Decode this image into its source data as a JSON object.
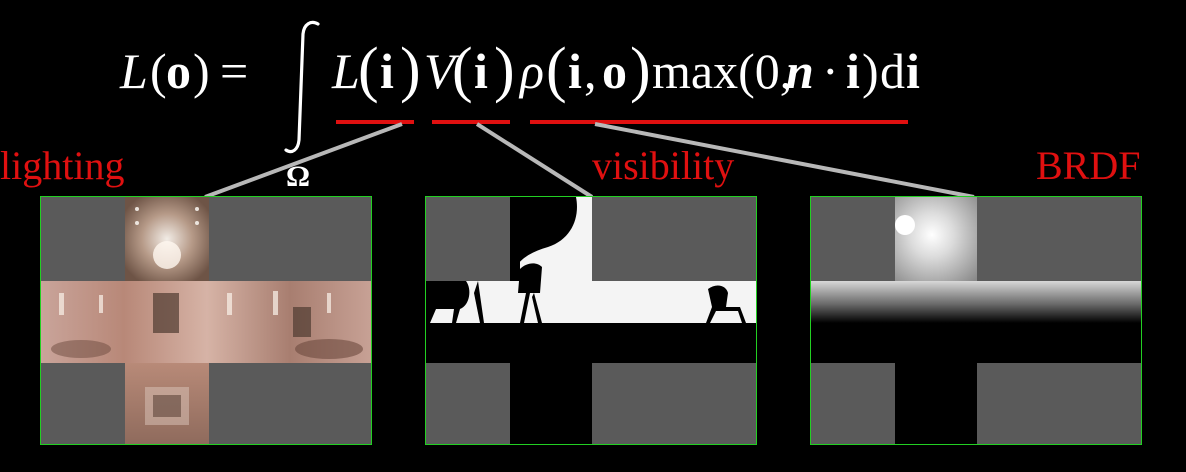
{
  "equation": {
    "lhs": "L",
    "lhs_arg": "o",
    "equals": "=",
    "domain": "Ω",
    "term_lighting_fn": "L",
    "term_lighting_arg": "i",
    "term_visibility_fn": "V",
    "term_visibility_arg": "i",
    "term_brdf_fn": "ρ",
    "term_brdf_arg_i": "i",
    "term_brdf_arg_sep": ",",
    "term_brdf_arg_o": "o",
    "cosine_term": "max(0,",
    "cosine_n": "n",
    "cosine_dot": "·",
    "cosine_i": "i",
    "cosine_close": ")",
    "differential_d": "d",
    "differential_i": "i"
  },
  "labels": {
    "lighting": "lighting",
    "visibility": "visibility",
    "brdf": "BRDF"
  },
  "colors": {
    "background": "#000000",
    "label_red": "#e01010",
    "underline_red": "#e01010",
    "connector_gray": "#b8b8b8",
    "panel_border": "#22d022",
    "cube_face_gray": "#5a5a5a"
  }
}
